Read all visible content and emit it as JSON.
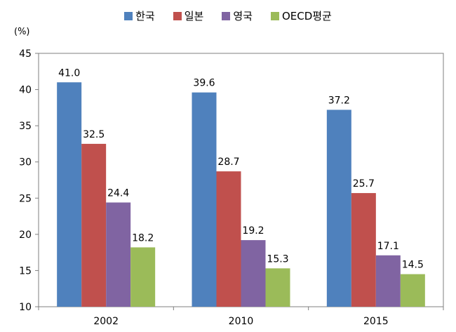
{
  "chart_data": {
    "type": "bar",
    "categories": [
      "2002",
      "2010",
      "2015"
    ],
    "series": [
      {
        "name": "한국",
        "values": [
          41.0,
          39.6,
          37.2
        ],
        "color": "#4F81BD"
      },
      {
        "name": "일본",
        "values": [
          32.5,
          28.7,
          25.7
        ],
        "color": "#C0504D"
      },
      {
        "name": "영국",
        "values": [
          24.4,
          19.2,
          17.1
        ],
        "color": "#8064A2"
      },
      {
        "name": "OECD평균",
        "values": [
          18.2,
          15.3,
          14.5
        ],
        "color": "#9BBB59"
      }
    ],
    "ylabel": "(%)",
    "ylim": [
      10,
      45
    ],
    "yticks": [
      "10",
      "15",
      "20",
      "25",
      "30",
      "35",
      "40",
      "45"
    ],
    "data_labels": true,
    "legend_position": "top"
  }
}
